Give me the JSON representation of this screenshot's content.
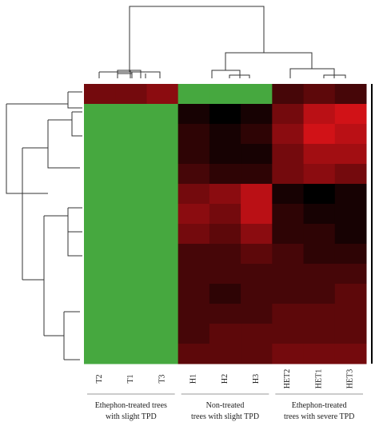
{
  "chart_data": {
    "type": "heatmap",
    "columns": [
      "T2",
      "T1",
      "T3",
      "H1",
      "H2",
      "H3",
      "HET2",
      "HET1",
      "HET3"
    ],
    "groups": [
      {
        "lines": [
          "Ethephon-treated trees",
          "with slight TPD"
        ],
        "span": [
          0,
          2
        ]
      },
      {
        "lines": [
          "Non-treated",
          "trees with slight TPD"
        ],
        "span": [
          3,
          5
        ]
      },
      {
        "lines": [
          "Ethephon-treated",
          "trees with severe TPD"
        ],
        "span": [
          6,
          8
        ]
      }
    ],
    "low_color": "#46a83f",
    "high_color": "#e8141a",
    "values": [
      [
        0.5,
        0.5,
        0.6,
        -1,
        -1,
        -1,
        0.3,
        0.4,
        0.3
      ],
      [
        -1,
        -1,
        -1,
        0.1,
        0,
        0.1,
        0.5,
        0.8,
        0.9
      ],
      [
        -1,
        -1,
        -1,
        0.2,
        0.1,
        0.2,
        0.6,
        0.9,
        0.8
      ],
      [
        -1,
        -1,
        -1,
        0.2,
        0.1,
        0.1,
        0.5,
        0.7,
        0.7
      ],
      [
        -1,
        -1,
        -1,
        0.3,
        0.2,
        0.2,
        0.5,
        0.6,
        0.5
      ],
      [
        -1,
        -1,
        -1,
        0.5,
        0.6,
        0.8,
        0.1,
        0,
        0.1
      ],
      [
        -1,
        -1,
        -1,
        0.6,
        0.5,
        0.8,
        0.2,
        0.1,
        0.1
      ],
      [
        -1,
        -1,
        -1,
        0.5,
        0.4,
        0.6,
        0.2,
        0.2,
        0.1
      ],
      [
        -1,
        -1,
        -1,
        0.3,
        0.3,
        0.4,
        0.3,
        0.2,
        0.2
      ],
      [
        -1,
        -1,
        -1,
        0.3,
        0.3,
        0.3,
        0.3,
        0.3,
        0.3
      ],
      [
        -1,
        -1,
        -1,
        0.3,
        0.2,
        0.3,
        0.3,
        0.3,
        0.4
      ],
      [
        -1,
        -1,
        -1,
        0.3,
        0.3,
        0.3,
        0.4,
        0.4,
        0.4
      ],
      [
        -1,
        -1,
        -1,
        0.3,
        0.4,
        0.4,
        0.4,
        0.4,
        0.4
      ],
      [
        -1,
        -1,
        -1,
        0.4,
        0.4,
        0.4,
        0.5,
        0.5,
        0.5
      ]
    ]
  }
}
